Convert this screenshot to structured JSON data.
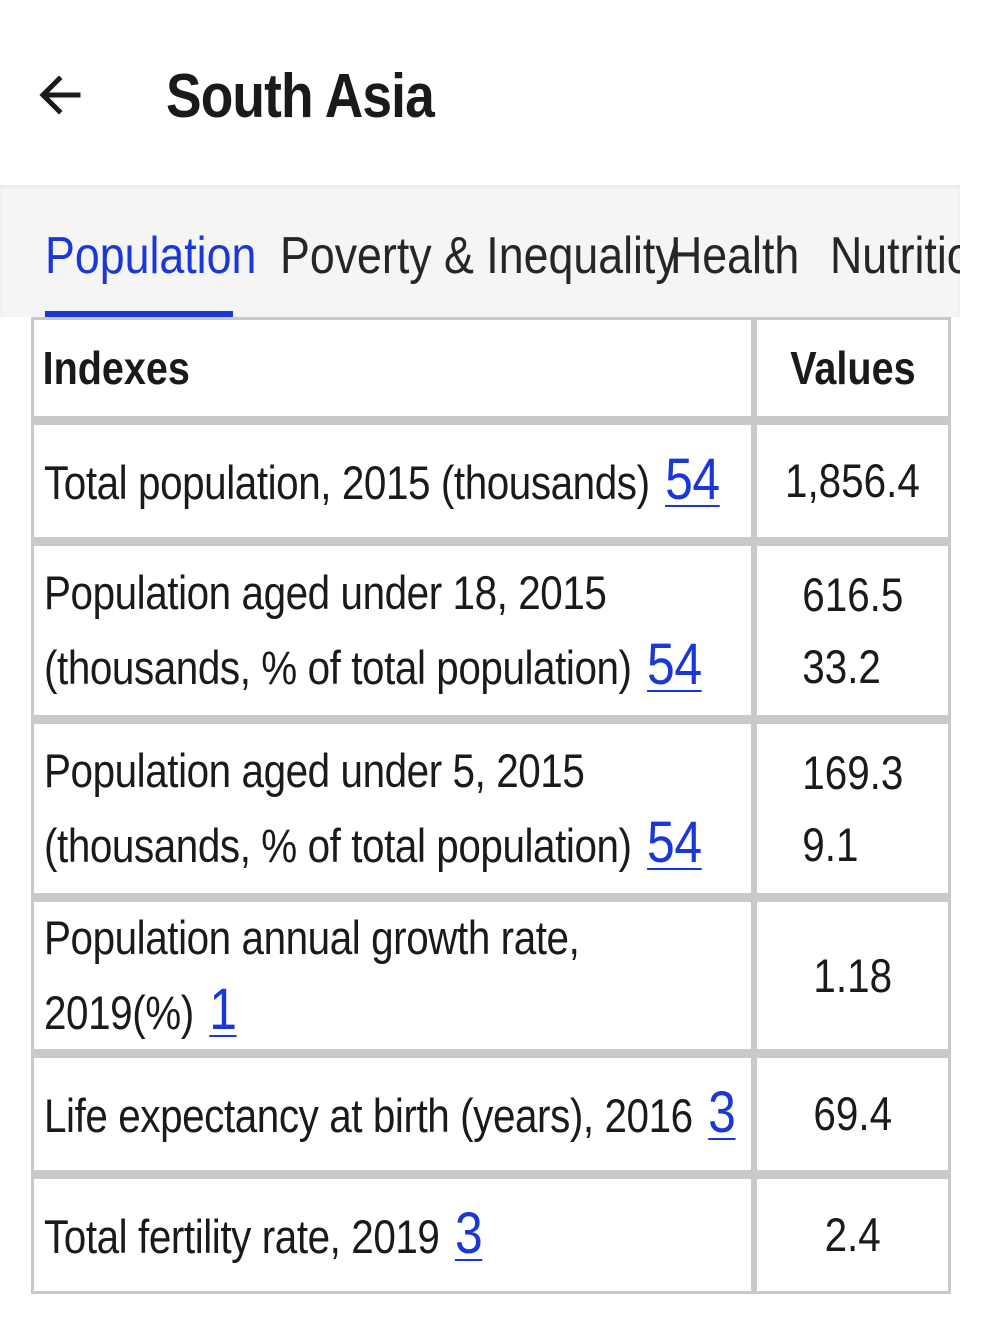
{
  "header": {
    "back_icon": "arrow-left-icon",
    "title": "South Asia"
  },
  "tabs": [
    {
      "label": "Population",
      "active": true
    },
    {
      "label": "Poverty & Inequality",
      "active": false
    },
    {
      "label": "Health",
      "active": false
    },
    {
      "label": "Nutritio",
      "active": false
    }
  ],
  "table": {
    "headers": {
      "index": "Indexes",
      "value": "Values"
    },
    "rows": [
      {
        "label": "Total population, 2015 (thousands)",
        "ref": "54",
        "values": [
          "1,856.4"
        ]
      },
      {
        "label": "Population aged under 18, 2015 (thousands, % of total population)",
        "ref": "54",
        "values": [
          "616.5",
          "33.2"
        ]
      },
      {
        "label": "Population aged under 5, 2015 (thousands, % of total population)",
        "ref": "54",
        "values": [
          "169.3",
          "9.1"
        ]
      },
      {
        "label": "Population annual growth rate, 2019(%)",
        "ref": "1",
        "values": [
          "1.18"
        ]
      },
      {
        "label": "Life expectancy at birth (years), 2016",
        "ref": "3",
        "values": [
          "69.4"
        ]
      },
      {
        "label": "Total fertility rate, 2019",
        "ref": "3",
        "values": [
          "2.4"
        ]
      }
    ]
  },
  "colors": {
    "accent": "#1a37d8",
    "tab_background": "#f5f5f5",
    "table_border": "#c9c9c9"
  }
}
